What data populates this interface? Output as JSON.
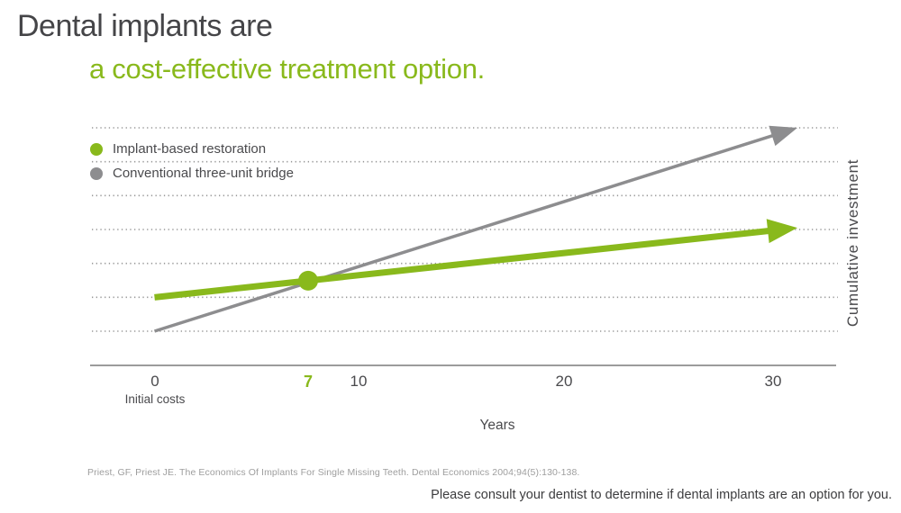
{
  "title": {
    "line1": "Dental implants are",
    "line2": "a cost-effective treatment option."
  },
  "legend": {
    "items": [
      {
        "label": "Implant-based restoration",
        "color": "#89b91c"
      },
      {
        "label": "Conventional three-unit bridge",
        "color": "#8d8d8f"
      }
    ]
  },
  "axes": {
    "x_label": "Years",
    "y_label": "Cumulative investment",
    "x_ticks": [
      {
        "value": 0,
        "label": "0",
        "sublabel": "Initial costs",
        "highlight": false
      },
      {
        "value": 7,
        "label": "7",
        "highlight": true
      },
      {
        "value": 10,
        "label": "10",
        "highlight": false
      },
      {
        "value": 20,
        "label": "20",
        "highlight": false
      },
      {
        "value": 30,
        "label": "30",
        "highlight": false
      }
    ]
  },
  "footer": {
    "citation": "Priest, GF, Priest JE. The Economics Of Implants For Single Missing Teeth. Dental Economics 2004;94(5):130-138.",
    "disclaimer": "Please consult your dentist to determine if dental implants are an option for you."
  },
  "colors": {
    "accent_green": "#89b91c",
    "line_gray": "#8d8d8f",
    "title_text": "#454548",
    "body_text": "#4a4a4d",
    "grid_dots": "#979797",
    "axis_line": "#9b9b9b",
    "citation_text": "#9e9e9e",
    "disclaimer_text": "#3c3c3e"
  },
  "chart_data": {
    "type": "line",
    "title": "Dental implants are a cost-effective treatment option.",
    "xlabel": "Years",
    "ylabel": "Cumulative investment",
    "xlim": [
      0,
      31.2
    ],
    "ylim": [
      0,
      6
    ],
    "grid": "horizontal-dotted",
    "gridline_count": 7,
    "legend_position": "top-left",
    "x_ticks": [
      0,
      7,
      10,
      20,
      30
    ],
    "series": [
      {
        "name": "Implant-based restoration",
        "color": "#89b91c",
        "x": [
          0,
          31.2
        ],
        "y": [
          1.0,
          3.05
        ],
        "stroke_width": 7,
        "arrow_end": true
      },
      {
        "name": "Conventional three-unit bridge",
        "color": "#8d8d8f",
        "x": [
          0,
          31.2
        ],
        "y": [
          0.0,
          6.0
        ],
        "stroke_width": 3.5,
        "arrow_end": true
      }
    ],
    "breakeven_marker": {
      "year": 7,
      "on_series": "Implant-based restoration"
    }
  }
}
